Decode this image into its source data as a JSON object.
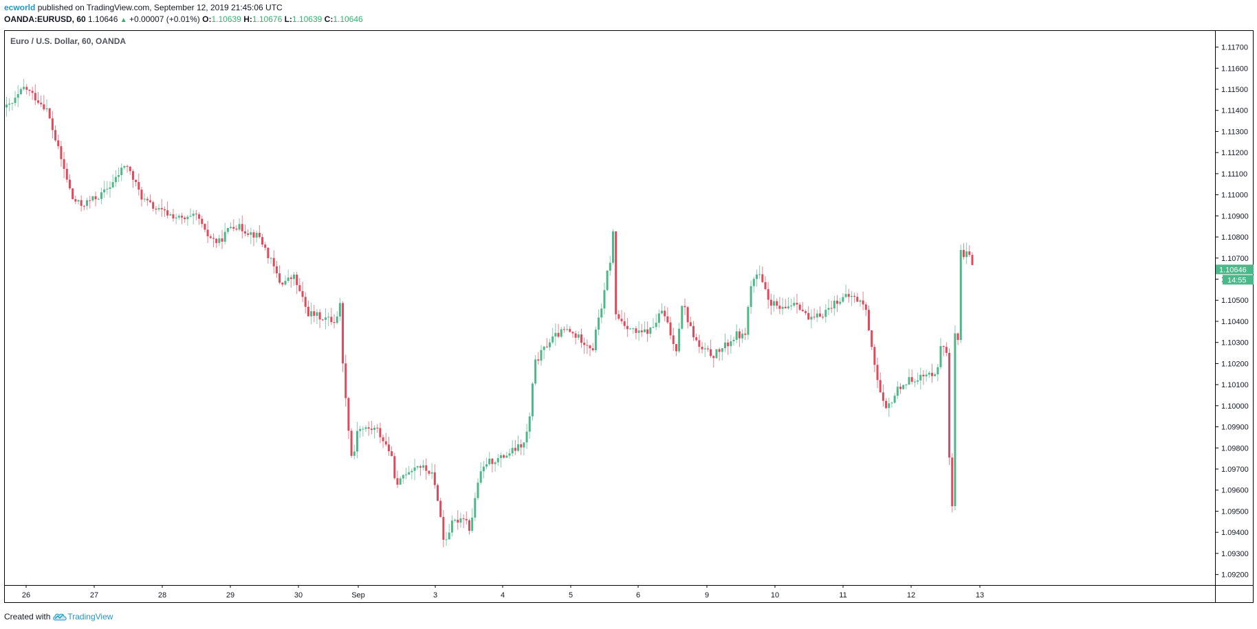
{
  "header": {
    "author": "ecworld",
    "published_text": "published on TradingView.com, September 12, 2019 21:45:06 UTC",
    "symbol": "OANDA:EURUSD, 60",
    "last": "1.10646",
    "change": "+0.00007 (+0.01%)",
    "o_label": "O:",
    "o_value": "1.10639",
    "h_label": "H:",
    "h_value": "1.10676",
    "l_label": "L:",
    "l_value": "1.10639",
    "c_label": "C:",
    "c_value": "1.10646"
  },
  "footer": {
    "created_with": "Created with",
    "brand": "TradingView"
  },
  "colors": {
    "up": "#4cb88a",
    "down": "#e0495b",
    "price_tag": "#4cb88a",
    "axis_line": "#000000"
  },
  "chart_data": {
    "type": "candlestick",
    "title": "Euro / U.S. Dollar, 60, OANDA",
    "ylim": [
      1.0915,
      1.1178
    ],
    "y_ticks": [
      "1.11700",
      "1.11600",
      "1.11500",
      "1.11400",
      "1.11300",
      "1.11200",
      "1.11100",
      "1.11000",
      "1.10900",
      "1.10800",
      "1.10700",
      "1.10600",
      "1.10500",
      "1.10400",
      "1.10300",
      "1.10200",
      "1.10100",
      "1.10000",
      "1.09900",
      "1.09800",
      "1.09700",
      "1.09600",
      "1.09500",
      "1.09400",
      "1.09300",
      "1.09200"
    ],
    "x_ticks": [
      "26",
      "27",
      "28",
      "29",
      "30",
      "Sep",
      "3",
      "4",
      "5",
      "6",
      "9",
      "10",
      "11",
      "12",
      "13"
    ],
    "last_price_label": "1.10646",
    "countdown_label": "14:55",
    "last_price": 1.10646,
    "path_x": [
      0,
      10,
      28,
      60,
      98,
      110,
      140,
      160,
      175,
      200,
      220,
      260,
      280,
      290,
      310,
      330,
      350,
      370,
      390,
      400,
      420,
      440,
      460,
      480,
      488,
      492,
      500,
      505,
      512,
      540,
      560,
      570,
      580,
      600,
      620,
      630,
      638,
      650,
      668,
      676,
      688,
      700,
      720,
      755,
      762,
      770,
      790,
      800,
      815,
      840,
      855,
      862,
      870,
      876,
      880,
      884,
      888,
      900,
      920,
      940,
      955,
      965,
      975,
      985,
      995,
      1010,
      1030,
      1050,
      1065,
      1075,
      1085,
      1095,
      1110,
      1130,
      1150,
      1170,
      1190,
      1210,
      1230,
      1250,
      1260,
      1270,
      1280,
      1290,
      1300,
      1320,
      1340,
      1355,
      1362,
      1370,
      1374,
      1377,
      1381,
      1386,
      1390,
      1395,
      1400,
      1405,
      1410
    ],
    "path_close": [
      1.1141,
      1.1143,
      1.1151,
      1.1141,
      1.1098,
      1.1095,
      1.11,
      1.1107,
      1.1115,
      1.1098,
      1.1093,
      1.1088,
      1.109,
      1.1082,
      1.1077,
      1.1086,
      1.1083,
      1.108,
      1.1066,
      1.1058,
      1.1061,
      1.1044,
      1.1042,
      1.104,
      1.1049,
      1.1013,
      1.0988,
      1.0972,
      1.0989,
      1.0989,
      1.0978,
      1.0961,
      1.0968,
      1.0972,
      1.0968,
      1.0955,
      1.0935,
      1.0944,
      1.0948,
      1.0941,
      1.0965,
      1.0973,
      1.0975,
      1.0982,
      1.0992,
      1.102,
      1.103,
      1.1033,
      1.1036,
      1.1031,
      1.1027,
      1.1041,
      1.105,
      1.1064,
      1.1069,
      1.1082,
      1.1043,
      1.1039,
      1.1034,
      1.1036,
      1.1045,
      1.1037,
      1.1025,
      1.105,
      1.1038,
      1.1027,
      1.1024,
      1.1029,
      1.1034,
      1.1032,
      1.1058,
      1.1063,
      1.105,
      1.1045,
      1.105,
      1.104,
      1.1044,
      1.105,
      1.1052,
      1.1048,
      1.1029,
      1.1009,
      1.0997,
      1.1003,
      1.1009,
      1.1013,
      1.1014,
      1.1017,
      1.103,
      1.1025,
      1.0962,
      1.0946,
      1.1035,
      1.1029,
      1.1075,
      1.1068,
      1.1074,
      1.1067,
      1.10646
    ]
  }
}
